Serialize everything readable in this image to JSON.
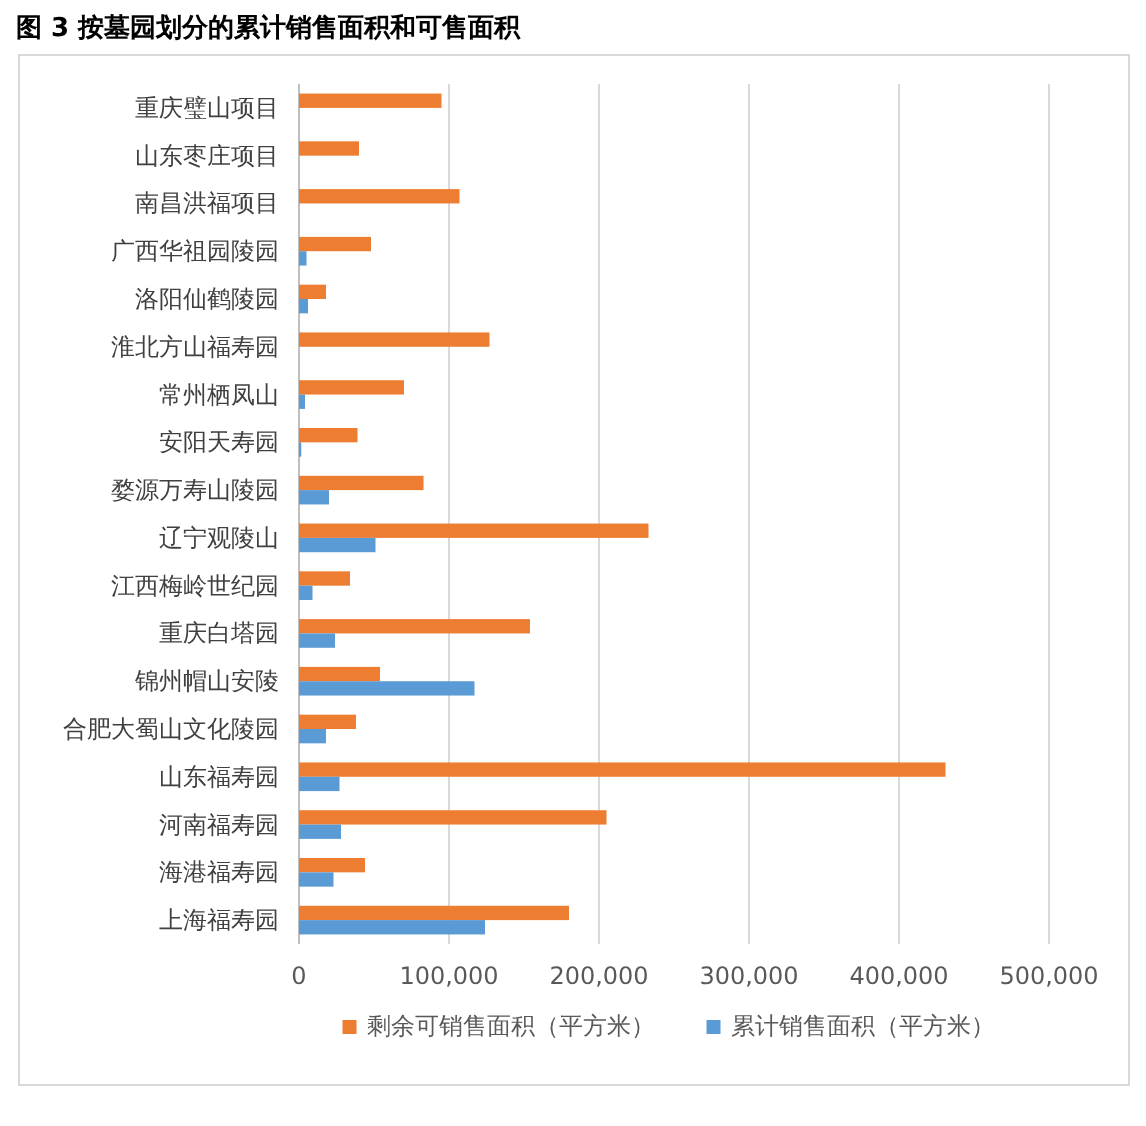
{
  "chart_data": {
    "type": "bar",
    "orientation": "horizontal",
    "title": "图 3 按墓园划分的累计销售面积和可售面积",
    "categories": [
      "重庆璧山项目",
      "山东枣庄项目",
      "南昌洪福项目",
      "广西华祖园陵园",
      "洛阳仙鹤陵园",
      "淮北方山福寿园",
      "常州栖凤山",
      "安阳天寿园",
      "婺源万寿山陵园",
      "辽宁观陵山",
      "江西梅岭世纪园",
      "重庆白塔园",
      "锦州帽山安陵",
      "合肥大蜀山文化陵园",
      "山东福寿园",
      "河南福寿园",
      "海港福寿园",
      "上海福寿园"
    ],
    "series": [
      {
        "name": "剩余可销售面积（平方米）",
        "color": "#ed7d31",
        "values": [
          95000,
          40000,
          107000,
          48000,
          18000,
          127000,
          70000,
          39000,
          83000,
          233000,
          34000,
          154000,
          54000,
          38000,
          431000,
          205000,
          44000,
          180000
        ]
      },
      {
        "name": "累计销售面积（平方米）",
        "color": "#5b9bd5",
        "values": [
          null,
          null,
          null,
          5000,
          6000,
          null,
          4000,
          1500,
          20000,
          51000,
          9000,
          24000,
          117000,
          18000,
          27000,
          28000,
          23000,
          124000
        ]
      }
    ],
    "xlim": [
      0,
      500000
    ],
    "xticks": [
      0,
      {
        "value": 100000,
        "label": "100,000"
      },
      {
        "value": 200000,
        "label": "200,000"
      },
      {
        "value": 300000,
        "label": "300,000"
      },
      {
        "value": 400000,
        "label": "400,000"
      },
      {
        "value": 500000,
        "label": "500,000"
      }
    ],
    "grid": "x",
    "legend": "bottom"
  }
}
